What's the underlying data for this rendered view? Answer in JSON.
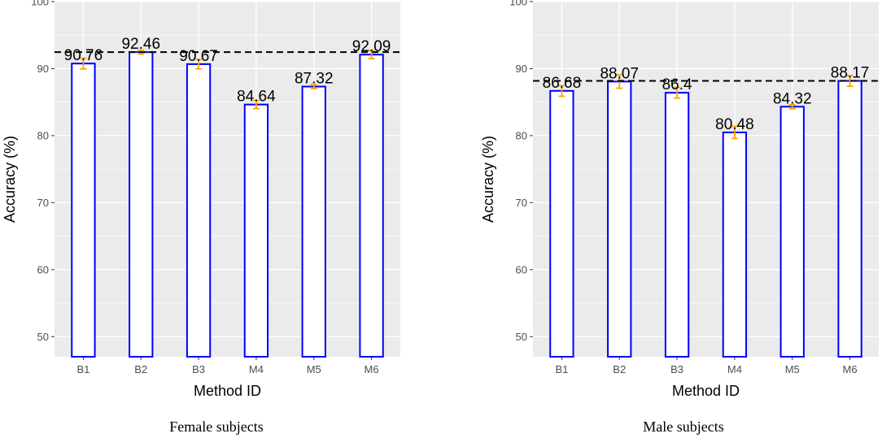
{
  "chart_data": [
    {
      "type": "bar",
      "title": "",
      "caption": "Female subjects",
      "xlabel": "Method ID",
      "ylabel": "Accuracy (%)",
      "ylim": [
        47,
        100
      ],
      "yticks": [
        50,
        60,
        70,
        80,
        90,
        100
      ],
      "categories": [
        "B1",
        "B2",
        "B3",
        "M4",
        "M5",
        "M6"
      ],
      "values": [
        90.76,
        92.46,
        90.67,
        84.64,
        87.32,
        92.09
      ],
      "value_labels": [
        "90.76",
        "92.46",
        "90.67",
        "84.64",
        "87.32",
        "92.09"
      ],
      "error": [
        0.8,
        0.3,
        0.7,
        0.6,
        0.3,
        0.6
      ],
      "reference_line": 92.46,
      "grid": true
    },
    {
      "type": "bar",
      "title": "",
      "caption": "Male subjects",
      "xlabel": "Method ID",
      "ylabel": "Accuracy (%)",
      "ylim": [
        47,
        100
      ],
      "yticks": [
        50,
        60,
        70,
        80,
        90,
        100
      ],
      "categories": [
        "B1",
        "B2",
        "B3",
        "M4",
        "M5",
        "M6"
      ],
      "values": [
        86.68,
        88.07,
        86.4,
        80.48,
        84.32,
        88.17
      ],
      "value_labels": [
        "86.68",
        "88.07",
        "86.4",
        "80.48",
        "84.32",
        "88.17"
      ],
      "error": [
        0.8,
        1.0,
        0.8,
        0.9,
        0.3,
        0.8
      ],
      "reference_line": 88.17,
      "grid": true
    }
  ],
  "colors": {
    "panel_bg": "#ebebeb",
    "grid": "#ffffff",
    "bar_fill": "#ffffff",
    "bar_border": "#0000ff",
    "error_bar": "#ffa500",
    "reference_line": "#000000"
  }
}
